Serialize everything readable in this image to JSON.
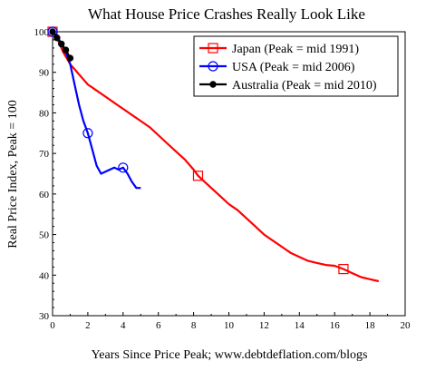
{
  "chart_data": {
    "type": "line",
    "title": "What House Price Crashes Really Look Like",
    "xlabel": "Years Since Price Peak; www.debtdeflation.com/blogs",
    "ylabel": "Real Price Index, Peak = 100",
    "xlim": [
      0,
      20
    ],
    "ylim": [
      30,
      100
    ],
    "xticks": [
      "0",
      "2",
      "4",
      "6",
      "8",
      "10",
      "12",
      "14",
      "16",
      "18",
      "20"
    ],
    "yticks": [
      "30",
      "40",
      "50",
      "60",
      "70",
      "80",
      "90",
      "100"
    ],
    "grid": false,
    "legend_position": "top-right",
    "series": [
      {
        "name": "Japan (Peak = mid 1991)",
        "color": "#ff0000",
        "marker": "square",
        "x": [
          0,
          0.2,
          0.4,
          0.6,
          0.8,
          1.0,
          1.3,
          1.6,
          2.0,
          2.5,
          3.0,
          3.5,
          4.0,
          4.5,
          5.0,
          5.5,
          6.0,
          6.5,
          7.0,
          7.5,
          8.0,
          8.25,
          8.5,
          9.0,
          9.5,
          10.0,
          10.5,
          11.0,
          11.5,
          12.0,
          12.5,
          13.0,
          13.5,
          14.0,
          14.5,
          15.0,
          15.5,
          16.0,
          16.5,
          17.0,
          17.5,
          18.0,
          18.5
        ],
        "y": [
          100,
          99,
          97,
          95,
          93.5,
          92,
          90.5,
          89,
          87,
          85.5,
          84,
          82.5,
          81,
          79.5,
          78,
          76.5,
          74.5,
          72.5,
          70.5,
          68.5,
          66,
          64.5,
          63.5,
          61.5,
          59.5,
          57.5,
          56,
          54,
          52,
          50,
          48.5,
          47,
          45.5,
          44.5,
          43.5,
          43,
          42.5,
          42.3,
          41.5,
          40.5,
          39.5,
          39,
          38.5
        ],
        "marker_x": [
          0,
          8.25,
          16.5
        ],
        "marker_y": [
          100,
          64.5,
          41.5
        ]
      },
      {
        "name": "USA (Peak = mid 2006)",
        "color": "#0000ff",
        "marker": "circle",
        "x": [
          0,
          0.25,
          0.5,
          0.75,
          1.0,
          1.25,
          1.5,
          1.75,
          2.0,
          2.25,
          2.5,
          2.75,
          3.0,
          3.25,
          3.5,
          3.75,
          4.0,
          4.25,
          4.5,
          4.75,
          5.0
        ],
        "y": [
          100,
          99,
          97,
          95,
          92,
          87,
          82,
          78,
          75,
          71,
          67,
          65,
          65.5,
          66,
          66.5,
          66,
          66.5,
          65,
          63,
          61.5,
          61.5
        ],
        "marker_x": [
          0,
          2.0,
          4.0
        ],
        "marker_y": [
          100,
          75,
          66.5
        ]
      },
      {
        "name": "Australia (Peak = mid 2010)",
        "color": "#000000",
        "marker": "dot",
        "x": [
          0,
          0.25,
          0.5,
          0.75,
          1.0
        ],
        "y": [
          100,
          98.5,
          97,
          95.5,
          93.5
        ],
        "marker_x": [
          0,
          0.25,
          0.5,
          0.75,
          1.0
        ],
        "marker_y": [
          100,
          98.5,
          97,
          95.5,
          93.5
        ]
      }
    ]
  }
}
